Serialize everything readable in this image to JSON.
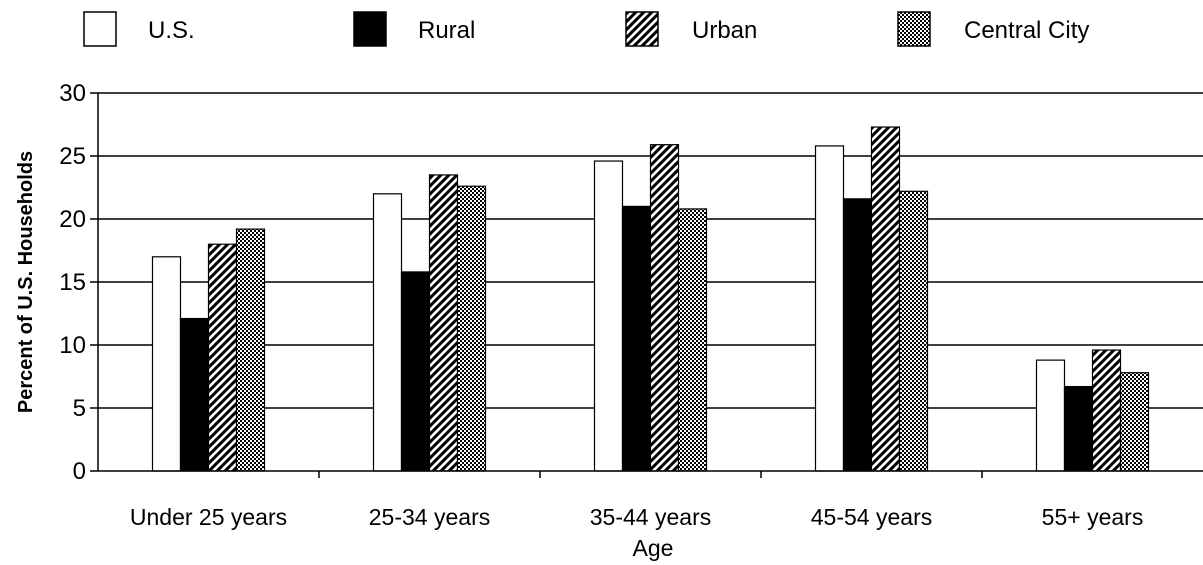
{
  "chart_data": {
    "type": "bar",
    "title": "",
    "xlabel": "Age",
    "ylabel": "Percent of U.S. Households",
    "ylim": [
      0,
      30
    ],
    "yticks": [
      0,
      5,
      10,
      15,
      20,
      25,
      30
    ],
    "grid": true,
    "legend_position": "top",
    "categories": [
      "Under 25 years",
      "25-34 years",
      "35-44 years",
      "45-54 years",
      "55+ years"
    ],
    "series": [
      {
        "name": "U.S.",
        "pattern": "white",
        "values": [
          17.0,
          22.0,
          24.6,
          25.8,
          8.8
        ]
      },
      {
        "name": "Rural",
        "pattern": "black",
        "values": [
          12.1,
          15.8,
          21.0,
          21.6,
          6.7
        ]
      },
      {
        "name": "Urban",
        "pattern": "diagonal-hatch",
        "values": [
          18.0,
          23.5,
          25.9,
          27.3,
          9.6
        ]
      },
      {
        "name": "Central City",
        "pattern": "dotted",
        "values": [
          19.2,
          22.6,
          20.8,
          22.2,
          7.8
        ]
      }
    ]
  }
}
